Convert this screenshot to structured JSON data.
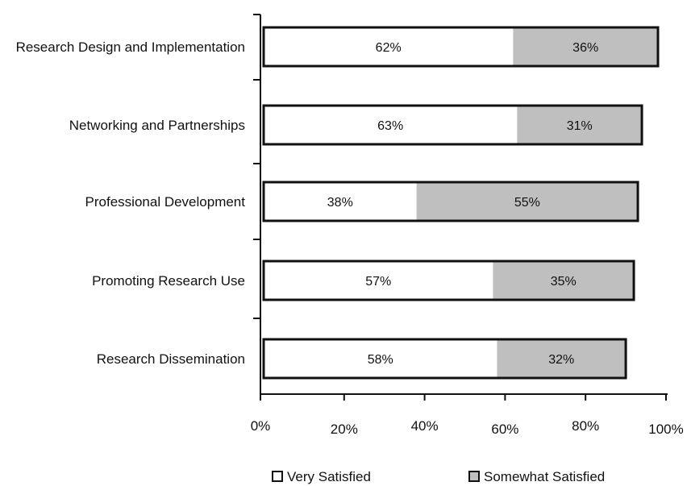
{
  "chart_data": {
    "type": "bar",
    "orientation": "horizontal",
    "stacked": true,
    "categories": [
      "Research Design and Implementation",
      "Networking and Partnerships",
      "Professional Development",
      "Promoting Research Use",
      "Research Dissemination"
    ],
    "series": [
      {
        "name": "Very Satisfied",
        "values": [
          62,
          63,
          38,
          57,
          58
        ],
        "color": "#ffffff"
      },
      {
        "name": "Somewhat Satisfied",
        "values": [
          36,
          31,
          55,
          35,
          32
        ],
        "color": "#bfbfbf"
      }
    ],
    "data_labels": [
      [
        "62%",
        "63%",
        "38%",
        "57%",
        "58%"
      ],
      [
        "36%",
        "31%",
        "55%",
        "35%",
        "32%"
      ]
    ],
    "xlim": [
      0,
      100
    ],
    "x_ticks": [
      0,
      20,
      40,
      60,
      80,
      100
    ],
    "x_tick_labels": [
      "0%",
      "20%",
      "40%",
      "60%",
      "80%",
      "100%"
    ],
    "title": "",
    "xlabel": "",
    "ylabel": "",
    "grid": false,
    "legend_position": "bottom"
  }
}
